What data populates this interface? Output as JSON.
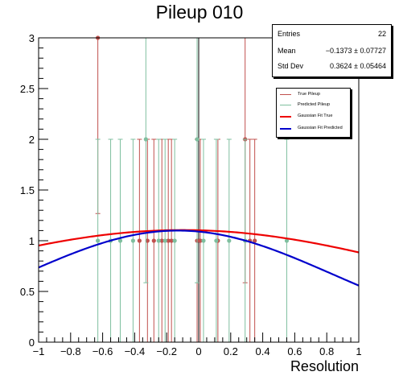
{
  "chart_data": {
    "type": "scatter",
    "title": "Pileup 010",
    "xlabel": "Resolution",
    "ylabel": "",
    "xlim": [
      -1,
      1
    ],
    "ylim": [
      0,
      3
    ],
    "x_ticks": [
      "−1",
      "−0.8",
      "−0.6",
      "−0.4",
      "−0.2",
      "0",
      "0.2",
      "0.4",
      "0.6",
      "0.8",
      "1"
    ],
    "y_ticks": [
      "0",
      "0.5",
      "1",
      "1.5",
      "2",
      "2.5",
      "3"
    ],
    "stats": {
      "entries_label": "Entries",
      "entries_value": "22",
      "mean_label": "Mean",
      "mean_value": "−0.1373 ± 0.07727",
      "std_label": "Std Dev",
      "std_value": "0.3624 ± 0.05464"
    },
    "legend_position": "top-right",
    "series": [
      {
        "name": "True Pileup",
        "color": "#c0504d",
        "style": "points-with-errors",
        "points": [
          {
            "x": -0.63,
            "y": 3
          },
          {
            "x": -0.37,
            "y": 1
          },
          {
            "x": -0.32,
            "y": 1
          },
          {
            "x": -0.28,
            "y": 1
          },
          {
            "x": -0.23,
            "y": 1
          },
          {
            "x": -0.19,
            "y": 1
          },
          {
            "x": -0.17,
            "y": 1
          },
          {
            "x": -0.01,
            "y": 1
          },
          {
            "x": 0.01,
            "y": 1
          },
          {
            "x": 0.12,
            "y": 1
          },
          {
            "x": 0.29,
            "y": 2
          },
          {
            "x": 0.32,
            "y": 1
          },
          {
            "x": 0.35,
            "y": 1
          }
        ]
      },
      {
        "name": "Predicted Pileup",
        "color": "#7fbf9f",
        "style": "points-with-errors",
        "points": [
          {
            "x": -0.63,
            "y": 1
          },
          {
            "x": -0.55,
            "y": 1
          },
          {
            "x": -0.49,
            "y": 1
          },
          {
            "x": -0.41,
            "y": 1
          },
          {
            "x": -0.33,
            "y": 2
          },
          {
            "x": -0.25,
            "y": 1
          },
          {
            "x": -0.21,
            "y": 1
          },
          {
            "x": -0.15,
            "y": 1
          },
          {
            "x": -0.01,
            "y": 2
          },
          {
            "x": 0.03,
            "y": 1
          },
          {
            "x": 0.11,
            "y": 1
          },
          {
            "x": 0.19,
            "y": 1
          },
          {
            "x": 0.29,
            "y": 1
          },
          {
            "x": 0.55,
            "y": 1
          }
        ]
      },
      {
        "name": "Gaussian Fit True",
        "color": "#ee0000",
        "style": "curve",
        "gaussian": {
          "amplitude": 1.105,
          "mean": -0.1,
          "sigma": 1.65
        }
      },
      {
        "name": "Gaussian Fit Predicted",
        "color": "#0000cc",
        "style": "curve",
        "gaussian": {
          "amplitude": 1.1,
          "mean": -0.13,
          "sigma": 0.97
        }
      }
    ]
  }
}
